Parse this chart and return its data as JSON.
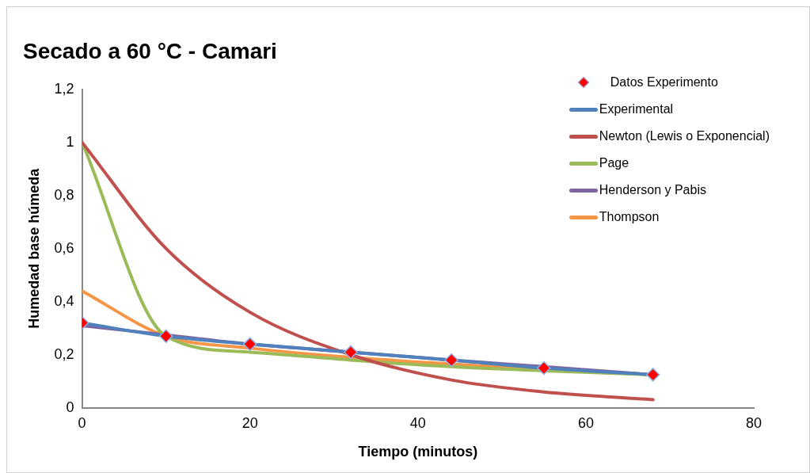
{
  "chart_data": {
    "type": "line",
    "title": "Secado a 60 °C - Camari",
    "xlabel": "Tiempo (minutos)",
    "ylabel": "Humedad base húmeda",
    "x": [
      0,
      10,
      20,
      32,
      44,
      55,
      68
    ],
    "series": [
      {
        "name": "Datos Experimento",
        "type": "scatter",
        "marker": "diamond",
        "color": "#ff0000",
        "values": [
          0.32,
          0.27,
          0.24,
          0.21,
          0.18,
          0.15,
          0.125
        ]
      },
      {
        "name": "Experimental",
        "color": "#4f81bd",
        "values": [
          0.32,
          0.27,
          0.24,
          0.21,
          0.18,
          0.15,
          0.125
        ]
      },
      {
        "name": "Newton (Lewis o Exponencial)",
        "color": "#c0504d",
        "values": [
          1,
          0.6,
          0.36,
          0.2,
          0.105,
          0.06,
          0.031
        ]
      },
      {
        "name": "Page",
        "color": "#9bbb59",
        "values": [
          1,
          0.27,
          0.21,
          0.18,
          0.155,
          0.14,
          0.125
        ]
      },
      {
        "name": "Henderson y Pabis",
        "color": "#8064a2",
        "values": [
          0.31,
          0.275,
          0.24,
          0.21,
          0.18,
          0.155,
          0.125
        ]
      },
      {
        "name": "Thompson",
        "color": "#f79646",
        "values": [
          0.44,
          0.27,
          0.225,
          0.19,
          0.165,
          0.145,
          0.125
        ]
      }
    ],
    "xlim": [
      0,
      80
    ],
    "xticks": [
      0,
      20,
      40,
      60,
      80
    ],
    "ylim": [
      0,
      1.2
    ],
    "yticks": [
      0,
      {
        "value": 0.2,
        "label": "0,2"
      },
      {
        "value": 0.4,
        "label": "0,4"
      },
      {
        "value": 0.6,
        "label": "0,6"
      },
      {
        "value": 0.8,
        "label": "0,8"
      },
      1,
      {
        "value": 1.2,
        "label": "1,2"
      }
    ],
    "grid": false,
    "legend": "top right"
  }
}
